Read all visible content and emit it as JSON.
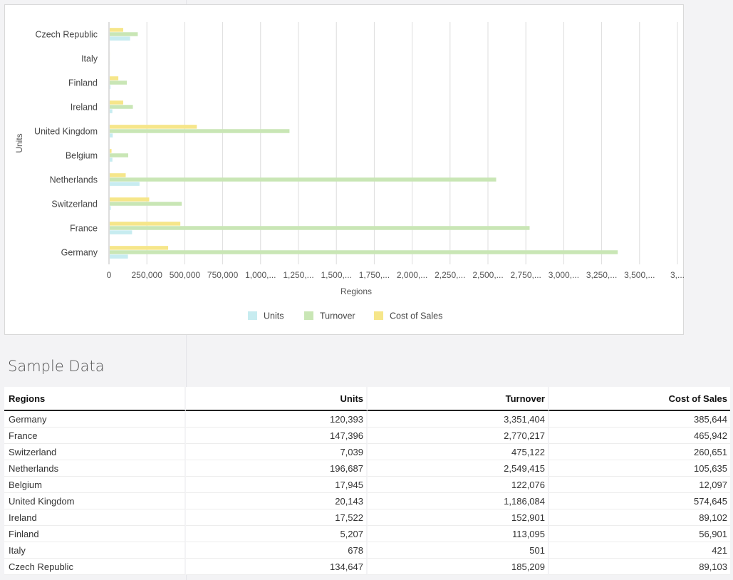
{
  "chart_data": {
    "type": "bar",
    "orientation": "horizontal",
    "categories": [
      "Czech Republic",
      "Italy",
      "Finland",
      "Ireland",
      "United Kingdom",
      "Belgium",
      "Netherlands",
      "Switzerland",
      "France",
      "Germany"
    ],
    "series": [
      {
        "name": "Units",
        "color": "#c7ecf0",
        "values": [
          134647,
          678,
          5207,
          17522,
          20143,
          17945,
          196687,
          7039,
          147396,
          120393
        ]
      },
      {
        "name": "Turnover",
        "color": "#c9e6b5",
        "values": [
          185209,
          501,
          113095,
          152901,
          1186084,
          122076,
          2549415,
          475122,
          2770217,
          3351404
        ]
      },
      {
        "name": "Cost of Sales",
        "color": "#f6e68a",
        "values": [
          89103,
          421,
          56901,
          89102,
          574645,
          12097,
          105635,
          260651,
          465942,
          385644
        ]
      }
    ],
    "xticks": [
      "0",
      "250,000",
      "500,000",
      "750,000",
      "1,000,...",
      "1,250,...",
      "1,500,...",
      "1,750,...",
      "2,000,...",
      "2,250,...",
      "2,500,...",
      "2,750,...",
      "3,000,...",
      "3,250,...",
      "3,500,...",
      "3,..."
    ],
    "xlim": [
      0,
      3750000
    ],
    "xlabel": "Regions",
    "ylabel": "Units",
    "grid": true,
    "legend_position": "bottom"
  },
  "section_title": "Sample Data",
  "table": {
    "columns": [
      "Regions",
      "Units",
      "Turnover",
      "Cost of Sales"
    ],
    "rows": [
      [
        "Germany",
        "120,393",
        "3,351,404",
        "385,644"
      ],
      [
        "France",
        "147,396",
        "2,770,217",
        "465,942"
      ],
      [
        "Switzerland",
        "7,039",
        "475,122",
        "260,651"
      ],
      [
        "Netherlands",
        "196,687",
        "2,549,415",
        "105,635"
      ],
      [
        "Belgium",
        "17,945",
        "122,076",
        "12,097"
      ],
      [
        "United Kingdom",
        "20,143",
        "1,186,084",
        "574,645"
      ],
      [
        "Ireland",
        "17,522",
        "152,901",
        "89,102"
      ],
      [
        "Finland",
        "5,207",
        "113,095",
        "56,901"
      ],
      [
        "Italy",
        "678",
        "501",
        "421"
      ],
      [
        "Czech Republic",
        "134,647",
        "185,209",
        "89,103"
      ]
    ]
  }
}
